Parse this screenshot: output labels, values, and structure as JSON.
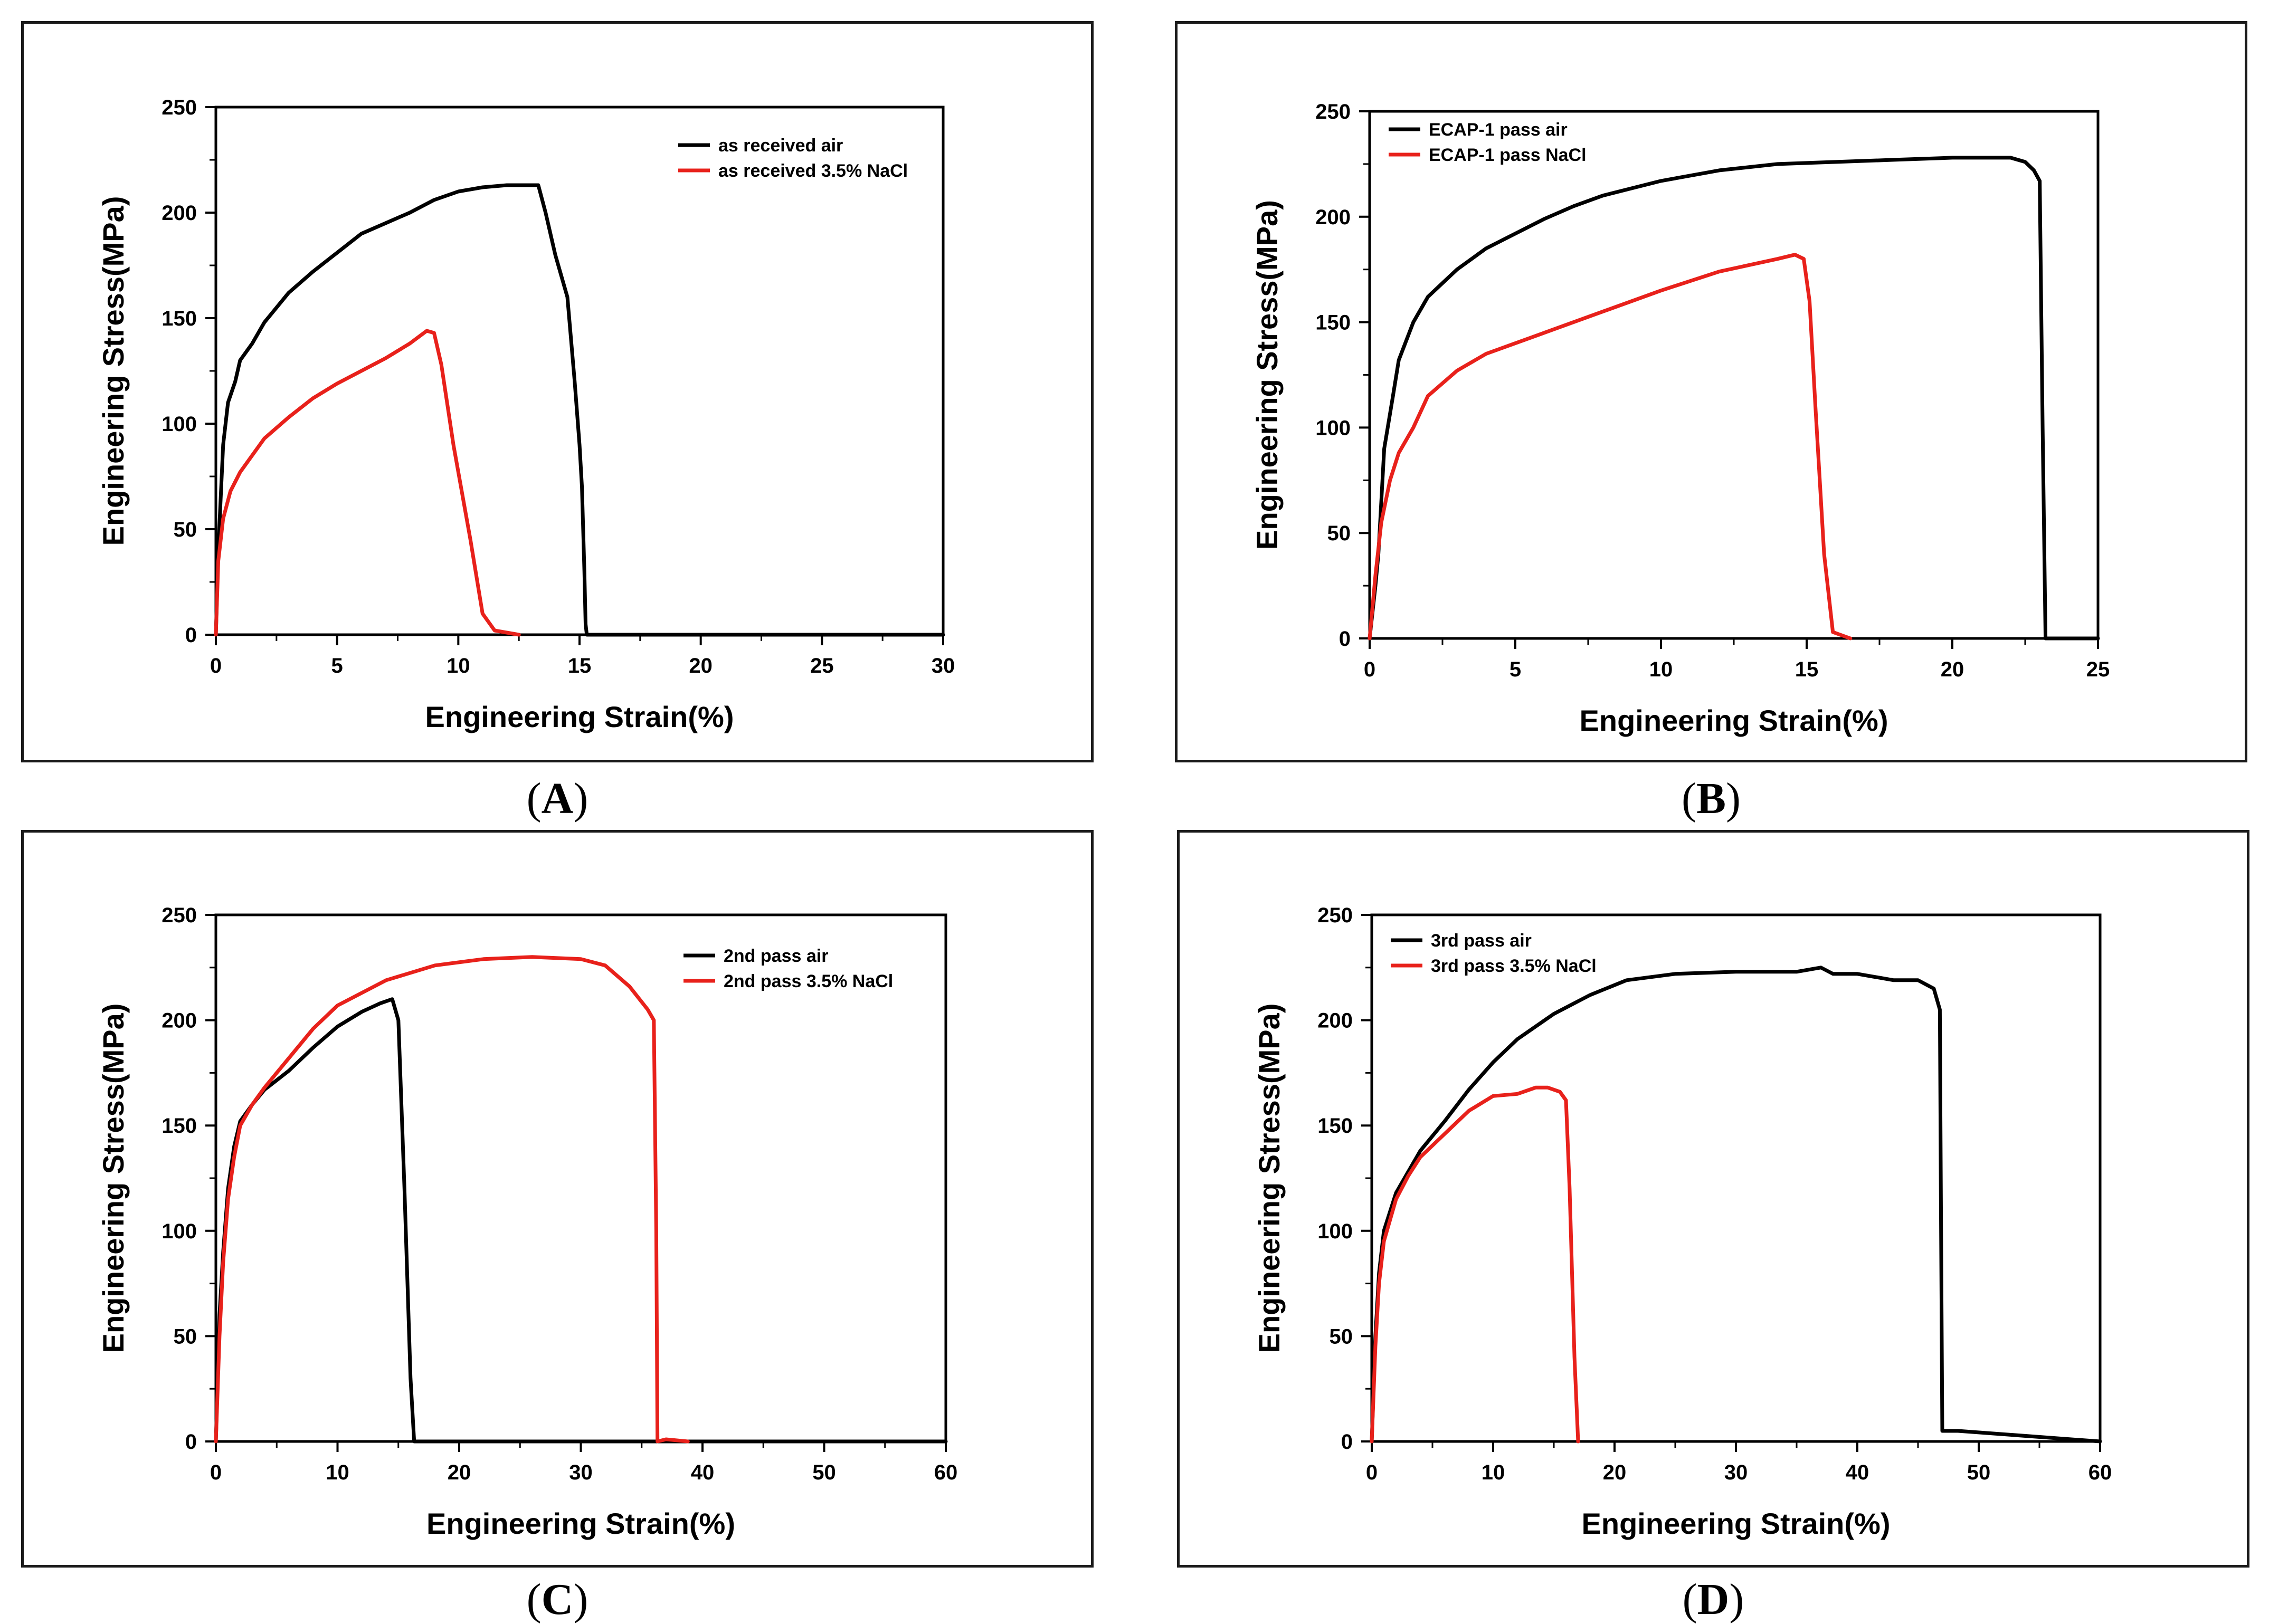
{
  "captions": {
    "A": {
      "open": "(",
      "letter": "A",
      "close": ")"
    },
    "B": {
      "open": "(",
      "letter": "B",
      "close": ")"
    },
    "C": {
      "open": "(",
      "letter": "C",
      "close": ")"
    },
    "D": {
      "open": "(",
      "letter": "D",
      "close": ")"
    }
  },
  "colors": {
    "air": "#000000",
    "nacl": "#e8211b"
  },
  "chart_data": [
    {
      "id": "A",
      "type": "line",
      "xlabel": "Engineering Strain(%)",
      "ylabel": "Engineering Stress(MPa)",
      "xlim": [
        0,
        30
      ],
      "ylim": [
        0,
        250
      ],
      "xticks": [
        0,
        5,
        10,
        15,
        20,
        25,
        30
      ],
      "yticks": [
        0,
        50,
        100,
        150,
        200,
        250
      ],
      "legend_position": "top-right",
      "series": [
        {
          "name": "as received air",
          "color": "#000000",
          "x": [
            0,
            0.1,
            0.3,
            0.5,
            0.8,
            1,
            1.5,
            2,
            3,
            4,
            5,
            6,
            7,
            8,
            9,
            10,
            11,
            12,
            13.3,
            13.6,
            14,
            14.5,
            14.8,
            15,
            15.1,
            15.2,
            15.25,
            15.3,
            30
          ],
          "y": [
            0,
            40,
            90,
            110,
            120,
            130,
            138,
            148,
            162,
            172,
            181,
            190,
            195,
            200,
            206,
            210,
            212,
            213,
            213,
            200,
            180,
            160,
            120,
            90,
            70,
            30,
            5,
            0,
            0
          ]
        },
        {
          "name": "as received 3.5% NaCl",
          "color": "#e8211b",
          "x": [
            0,
            0.1,
            0.3,
            0.6,
            1,
            1.5,
            2,
            3,
            4,
            5,
            6,
            7,
            8,
            8.7,
            9,
            9.3,
            9.8,
            10.5,
            11,
            11.5,
            12,
            12.5
          ],
          "y": [
            0,
            35,
            55,
            68,
            77,
            85,
            93,
            103,
            112,
            119,
            125,
            131,
            138,
            144,
            143,
            128,
            90,
            45,
            10,
            2,
            1,
            0
          ]
        }
      ]
    },
    {
      "id": "B",
      "type": "line",
      "xlabel": "Engineering Strain(%)",
      "ylabel": "Engineering Stress(MPa)",
      "xlim": [
        0,
        25
      ],
      "ylim": [
        0,
        250
      ],
      "xticks": [
        0,
        5,
        10,
        15,
        20,
        25
      ],
      "yticks": [
        0,
        50,
        100,
        150,
        200,
        250
      ],
      "legend_position": "top-left",
      "series": [
        {
          "name": "ECAP-1 pass air",
          "color": "#000000",
          "x": [
            0,
            0.2,
            0.3,
            0.5,
            0.8,
            1,
            1.5,
            2,
            3,
            4,
            5,
            6,
            7,
            8,
            10,
            12,
            14,
            16,
            18,
            20,
            22,
            22.5,
            22.8,
            23,
            23.1,
            23.2,
            25
          ],
          "y": [
            0,
            25,
            40,
            90,
            115,
            132,
            150,
            162,
            175,
            185,
            192,
            199,
            205,
            210,
            217,
            222,
            225,
            226,
            227,
            228,
            228,
            226,
            222,
            217,
            100,
            0,
            0
          ]
        },
        {
          "name": "ECAP-1 pass NaCl",
          "color": "#e8211b",
          "x": [
            0,
            0.2,
            0.4,
            0.7,
            1,
            1.5,
            2,
            3,
            4,
            5,
            6,
            7,
            8,
            10,
            12,
            13,
            14,
            14.6,
            14.9,
            15.1,
            15.3,
            15.6,
            15.9,
            16.5
          ],
          "y": [
            0,
            30,
            55,
            75,
            88,
            100,
            115,
            127,
            135,
            140,
            145,
            150,
            155,
            165,
            174,
            177,
            180,
            182,
            180,
            160,
            110,
            40,
            3,
            0
          ]
        }
      ]
    },
    {
      "id": "C",
      "type": "line",
      "xlabel": "Engineering Strain(%)",
      "ylabel": "Engineering Stress(MPa)",
      "xlim": [
        0,
        60
      ],
      "ylim": [
        0,
        250
      ],
      "xticks": [
        0,
        10,
        20,
        30,
        40,
        50,
        60
      ],
      "yticks": [
        0,
        50,
        100,
        150,
        200,
        250
      ],
      "legend_position": "top-right",
      "series": [
        {
          "name": "2nd pass air",
          "color": "#000000",
          "x": [
            0,
            0.3,
            0.6,
            1,
            1.5,
            2,
            3,
            4,
            6,
            8,
            10,
            12,
            13.5,
            14.5,
            15,
            15.5,
            16,
            16.3,
            60
          ],
          "y": [
            0,
            60,
            90,
            120,
            140,
            152,
            160,
            167,
            176,
            187,
            197,
            204,
            208,
            210,
            200,
            120,
            30,
            0,
            0
          ]
        },
        {
          "name": "2nd pass 3.5% NaCl",
          "color": "#e8211b",
          "x": [
            0,
            0.3,
            0.6,
            1,
            1.5,
            2,
            3,
            4,
            6,
            8,
            10,
            14,
            18,
            22,
            26,
            30,
            32,
            34,
            35.5,
            36,
            36.2,
            36.3,
            37,
            38.8
          ],
          "y": [
            0,
            50,
            85,
            115,
            135,
            150,
            160,
            168,
            182,
            196,
            207,
            219,
            226,
            229,
            230,
            229,
            226,
            216,
            205,
            200,
            100,
            0,
            1,
            0
          ]
        }
      ]
    },
    {
      "id": "D",
      "type": "line",
      "xlabel": "Engineering Strain(%)",
      "ylabel": "Engineering Stress(MPa)",
      "xlim": [
        0,
        60
      ],
      "ylim": [
        0,
        250
      ],
      "xticks": [
        0,
        10,
        20,
        30,
        40,
        50,
        60
      ],
      "yticks": [
        0,
        50,
        100,
        150,
        200,
        250
      ],
      "legend_position": "top-left",
      "series": [
        {
          "name": "3rd pass air",
          "color": "#000000",
          "x": [
            0,
            0.3,
            0.6,
            1,
            2,
            3,
            4,
            6,
            8,
            10,
            12,
            15,
            18,
            21,
            25,
            30,
            35,
            37,
            38,
            40,
            43,
            45,
            46.3,
            46.8,
            46.9,
            47,
            48.3,
            60
          ],
          "y": [
            0,
            50,
            80,
            100,
            118,
            128,
            138,
            152,
            167,
            180,
            191,
            203,
            212,
            219,
            222,
            223,
            223,
            225,
            222,
            222,
            219,
            219,
            215,
            205,
            100,
            5,
            5,
            0
          ]
        },
        {
          "name": "3rd pass 3.5% NaCl",
          "color": "#e8211b",
          "x": [
            0,
            0.3,
            0.6,
            1,
            2,
            3,
            4,
            6,
            8,
            10,
            12,
            13.5,
            14.5,
            15.5,
            16,
            16.3,
            16.7,
            17
          ],
          "y": [
            0,
            45,
            75,
            95,
            115,
            126,
            135,
            146,
            157,
            164,
            165,
            168,
            168,
            166,
            162,
            120,
            40,
            0
          ]
        }
      ]
    }
  ]
}
